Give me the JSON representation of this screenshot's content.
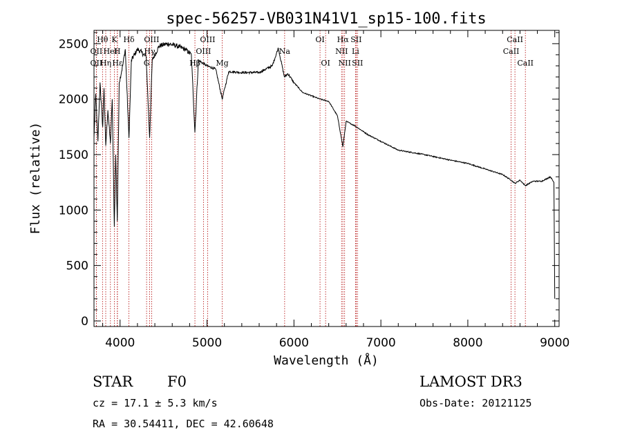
{
  "chart_data": {
    "type": "line",
    "title": "spec-56257-VB031N41V1_sp15-100.fits",
    "xlabel": "Wavelength (Å)",
    "ylabel": "Flux (relative)",
    "xlim": [
      3700,
      9050
    ],
    "ylim": [
      -50,
      2620
    ],
    "xticks": [
      4000,
      5000,
      6000,
      7000,
      8000,
      9000
    ],
    "xtick_labels": [
      "4000",
      "5000",
      "6000",
      "7000",
      "8000",
      "9000"
    ],
    "yticks": [
      0,
      500,
      1000,
      1500,
      2000,
      2500
    ],
    "ytick_labels": [
      "0",
      "500",
      "1000",
      "1500",
      "2000",
      "2500"
    ],
    "line_color": "#000000",
    "marker_color": "#b00000",
    "spectrum_anchors": [
      [
        3700,
        1650
      ],
      [
        3720,
        2050
      ],
      [
        3745,
        1620
      ],
      [
        3770,
        2150
      ],
      [
        3800,
        1750
      ],
      [
        3815,
        2100
      ],
      [
        3835,
        1580
      ],
      [
        3860,
        1900
      ],
      [
        3889,
        1600
      ],
      [
        3910,
        2000
      ],
      [
        3934,
        850
      ],
      [
        3950,
        1500
      ],
      [
        3968,
        900
      ],
      [
        3990,
        2150
      ],
      [
        4030,
        2300
      ],
      [
        4060,
        2450
      ],
      [
        4102,
        1650
      ],
      [
        4130,
        2350
      ],
      [
        4200,
        2450
      ],
      [
        4250,
        2420
      ],
      [
        4300,
        2380
      ],
      [
        4340,
        1650
      ],
      [
        4370,
        2350
      ],
      [
        4450,
        2480
      ],
      [
        4550,
        2500
      ],
      [
        4650,
        2480
      ],
      [
        4750,
        2450
      ],
      [
        4820,
        2400
      ],
      [
        4861,
        1700
      ],
      [
        4900,
        2350
      ],
      [
        5000,
        2300
      ],
      [
        5100,
        2270
      ],
      [
        5175,
        2000
      ],
      [
        5250,
        2250
      ],
      [
        5400,
        2240
      ],
      [
        5600,
        2240
      ],
      [
        5750,
        2300
      ],
      [
        5820,
        2460
      ],
      [
        5890,
        2200
      ],
      [
        5930,
        2230
      ],
      [
        6000,
        2150
      ],
      [
        6100,
        2060
      ],
      [
        6300,
        2000
      ],
      [
        6400,
        1980
      ],
      [
        6500,
        1850
      ],
      [
        6563,
        1570
      ],
      [
        6600,
        1800
      ],
      [
        6700,
        1760
      ],
      [
        6850,
        1680
      ],
      [
        7000,
        1620
      ],
      [
        7200,
        1540
      ],
      [
        7500,
        1500
      ],
      [
        7800,
        1450
      ],
      [
        8000,
        1420
      ],
      [
        8200,
        1370
      ],
      [
        8400,
        1320
      ],
      [
        8498,
        1270
      ],
      [
        8542,
        1240
      ],
      [
        8600,
        1270
      ],
      [
        8662,
        1220
      ],
      [
        8750,
        1260
      ],
      [
        8850,
        1260
      ],
      [
        8950,
        1300
      ],
      [
        8990,
        1250
      ],
      [
        9000,
        200
      ]
    ],
    "spectral_lines": [
      {
        "label": "Hθ",
        "wavelength": 3798,
        "row": 0
      },
      {
        "label": "OII",
        "wavelength": 3727,
        "row": 1
      },
      {
        "label": "OII",
        "wavelength": 3727,
        "row": 2
      },
      {
        "label": "K",
        "wavelength": 3934,
        "row": 0
      },
      {
        "label": "H",
        "wavelength": 3968,
        "row": 1
      },
      {
        "label": "HeI",
        "wavelength": 3889,
        "row": 1
      },
      {
        "label": "Hη",
        "wavelength": 3835,
        "row": 2
      },
      {
        "label": "Hε",
        "wavelength": 3970,
        "row": 2
      },
      {
        "label": "Hδ",
        "wavelength": 4102,
        "row": 0
      },
      {
        "label": "Hγ",
        "wavelength": 4340,
        "row": 1
      },
      {
        "label": "OIII",
        "wavelength": 4363,
        "row": 0
      },
      {
        "label": "G",
        "wavelength": 4305,
        "row": 2
      },
      {
        "label": "OIII",
        "wavelength": 5007,
        "row": 0
      },
      {
        "label": "OIII",
        "wavelength": 4959,
        "row": 1
      },
      {
        "label": "Hβ",
        "wavelength": 4861,
        "row": 2
      },
      {
        "label": "Mg",
        "wavelength": 5175,
        "row": 2
      },
      {
        "label": "Na",
        "wavelength": 5893,
        "row": 1
      },
      {
        "label": "OI",
        "wavelength": 6300,
        "row": 0
      },
      {
        "label": "OI",
        "wavelength": 6364,
        "row": 2
      },
      {
        "label": "Hα",
        "wavelength": 6563,
        "row": 0
      },
      {
        "label": "NII",
        "wavelength": 6548,
        "row": 1
      },
      {
        "label": "NII",
        "wavelength": 6583,
        "row": 2
      },
      {
        "label": "SII",
        "wavelength": 6716,
        "row": 0
      },
      {
        "label": "Li",
        "wavelength": 6708,
        "row": 1
      },
      {
        "label": "SII",
        "wavelength": 6731,
        "row": 2
      },
      {
        "label": "CaII",
        "wavelength": 8542,
        "row": 0
      },
      {
        "label": "CaII",
        "wavelength": 8498,
        "row": 1
      },
      {
        "label": "CaII",
        "wavelength": 8662,
        "row": 2
      }
    ]
  },
  "info": {
    "object_class": "STAR",
    "subclass": "F0",
    "survey": "LAMOST DR3",
    "cz": "cz = 17.1 ± 5.3 km/s",
    "obs_date": "Obs-Date: 20121125",
    "coords": "RA =  30.54411, DEC =  42.60648"
  }
}
